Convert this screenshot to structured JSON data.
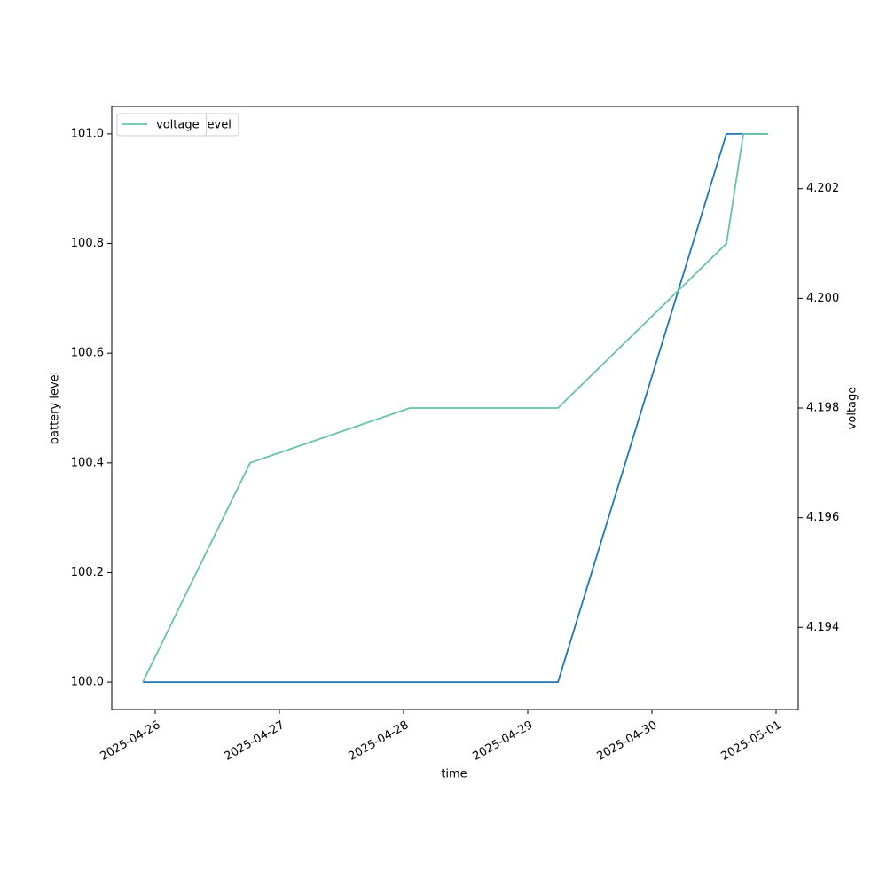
{
  "chart_data": {
    "type": "line",
    "xlabel": "time",
    "ylabel": "battery level",
    "y2label": "voltage",
    "x": [
      "2025-04-25T21:36",
      "2025-04-26T18:20",
      "2025-04-28T01:12",
      "2025-04-29T05:50",
      "2025-04-30T14:24",
      "2025-04-30T17:40",
      "2025-04-30T22:28"
    ],
    "series": [
      {
        "name": "battery_level",
        "color": "#1f77b4",
        "values": [
          100,
          100,
          100,
          100,
          101,
          101,
          101
        ]
      },
      {
        "name": "voltage",
        "color": "#66c2a5",
        "axis": "y2",
        "values": [
          4.193,
          4.197,
          4.198,
          4.198,
          4.201,
          4.203,
          4.203
        ]
      }
    ],
    "xlim": [
      "2025-04-25T15:36",
      "2025-05-01T04:17"
    ],
    "xticks": [
      "2025-04-26",
      "2025-04-27",
      "2025-04-28",
      "2025-04-29",
      "2025-04-30",
      "2025-05-01"
    ],
    "ylim": [
      99.95,
      101.05
    ],
    "yticks": [
      {
        "value": 100,
        "label": "100.0"
      },
      100.2,
      100.4,
      100.6,
      100.8,
      {
        "value": 101,
        "label": "101.0"
      }
    ],
    "y2lim": [
      4.1925,
      4.2035
    ],
    "y2ticks": [
      4.194,
      4.196,
      4.198,
      {
        "value": 4.2,
        "label": "4.200"
      },
      4.202
    ],
    "legend": "upper left",
    "grid": false
  }
}
